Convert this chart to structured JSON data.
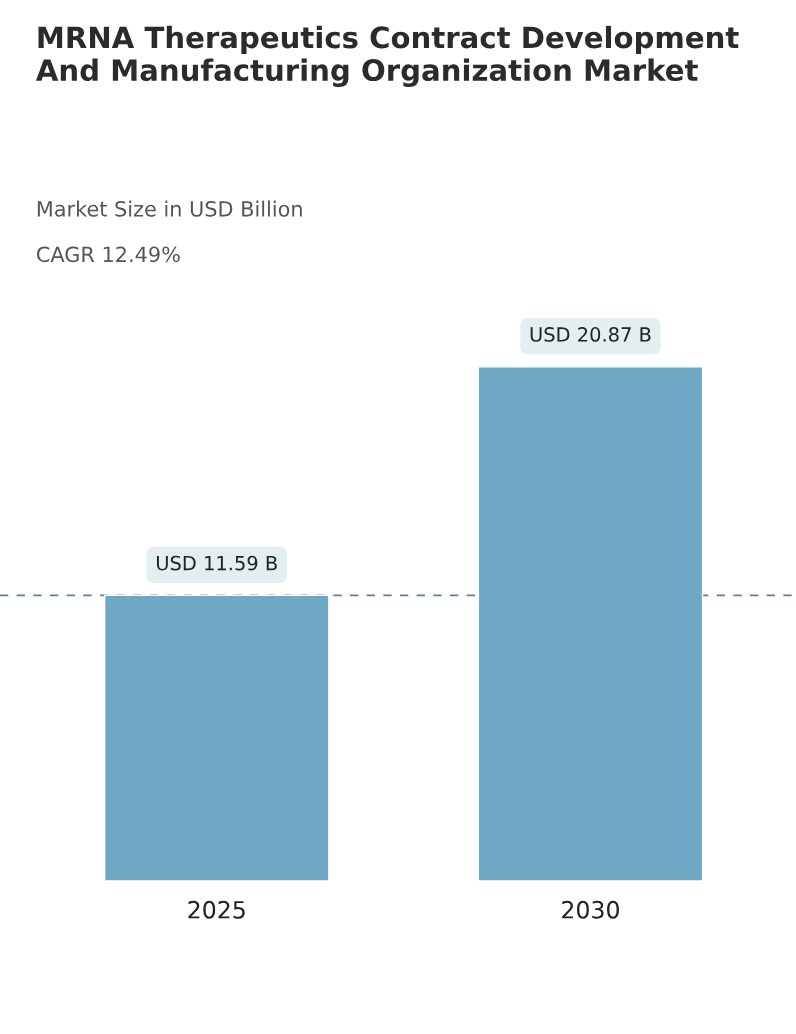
{
  "chart_data": {
    "type": "bar",
    "title": "MRNA Therapeutics Contract Development And Manufacturing Organization Market",
    "subtitle": "Market Size in USD Billion",
    "annotations": [
      "CAGR 12.49%"
    ],
    "categories": [
      "2025",
      "2030"
    ],
    "values": [
      11.59,
      20.87
    ],
    "color": "#6fa8c4",
    "value_labels": [
      "USD 11.59 B",
      "USD 20.87 B"
    ],
    "ref_lines": [
      {
        "axis": "y",
        "value": 11.59,
        "color": "#5a7f96",
        "line_style": "dashed"
      }
    ],
    "grid": false,
    "legend": false
  }
}
